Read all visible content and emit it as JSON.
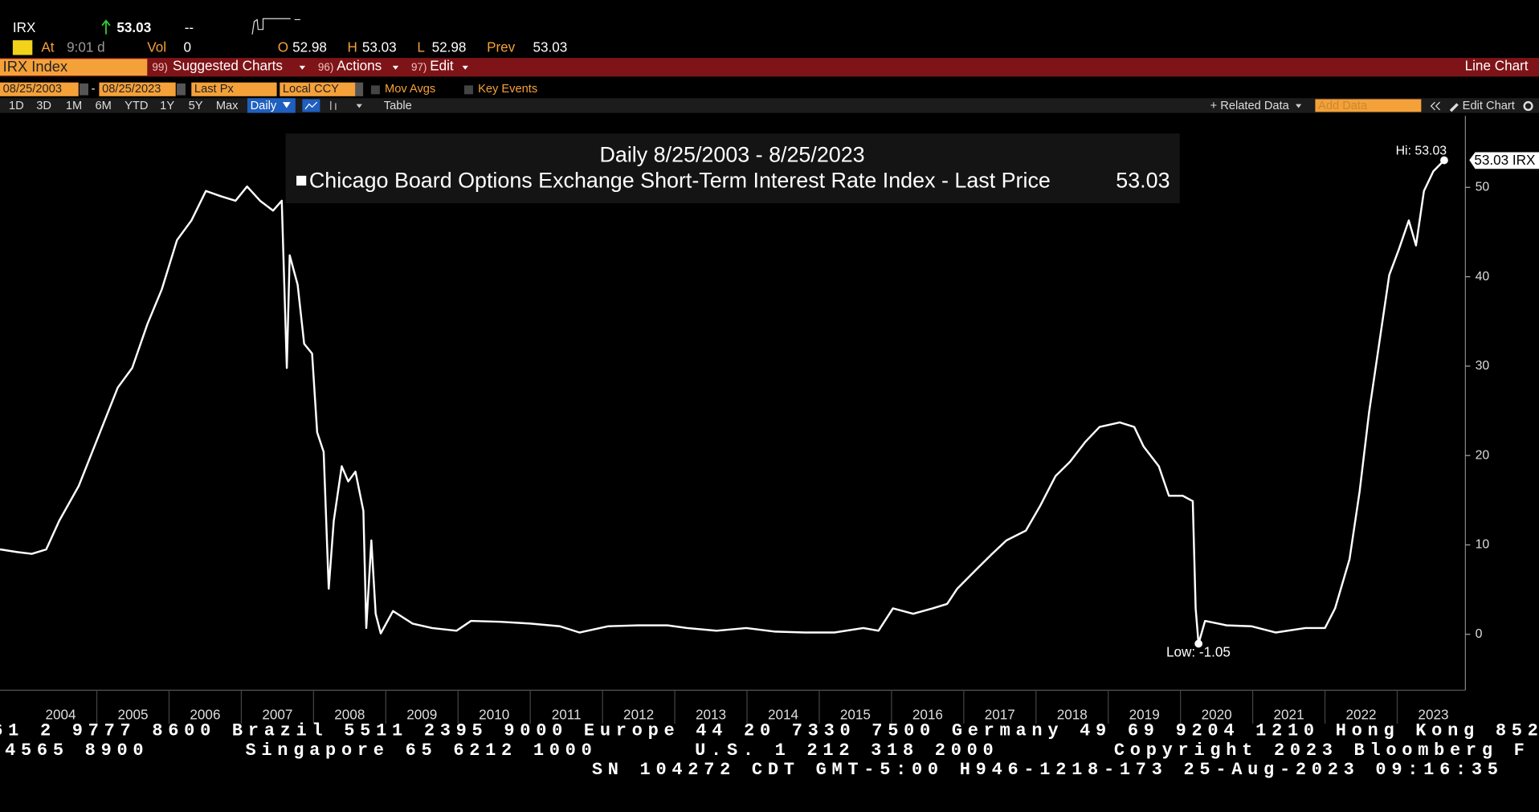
{
  "header": {
    "ticker": "IRX",
    "last": "53.03",
    "change": "--",
    "at_label": "At",
    "time": "9:01 d",
    "vol_label": "Vol",
    "vol": "0",
    "open_label": "O",
    "open": "52.98",
    "high_label": "H",
    "high": "53.03",
    "low_label": "L",
    "low": "52.98",
    "prev_label": "Prev",
    "prev": "53.03"
  },
  "menu": {
    "security": "IRX Index",
    "items": [
      {
        "num": "99)",
        "label": "Suggested Charts"
      },
      {
        "num": "96)",
        "label": "Actions"
      },
      {
        "num": "97)",
        "label": "Edit"
      }
    ],
    "view": "Line Chart"
  },
  "controls": {
    "start": "08/25/2003",
    "end": "08/25/2023",
    "field": "Last Px",
    "currency": "Local CCY",
    "mov_avgs": "Mov Avgs",
    "key_events": "Key Events"
  },
  "toolbar": {
    "periods": [
      "1D",
      "3D",
      "1M",
      "6M",
      "YTD",
      "1Y",
      "5Y",
      "Max"
    ],
    "frequency": "Daily",
    "table": "Table",
    "related": "+ Related Data",
    "add_data": "Add Data",
    "edit_chart": "Edit Chart"
  },
  "chart_data": {
    "type": "line",
    "title": "Daily 8/25/2003 - 8/25/2023",
    "x": [
      2003.66,
      2003.9,
      2004.1,
      2004.3,
      2004.48,
      2004.75,
      2005.02,
      2005.29,
      2005.49,
      2005.7,
      2005.9,
      2006.11,
      2006.31,
      2006.51,
      2006.72,
      2006.92,
      2007.08,
      2007.26,
      2007.44,
      2007.56,
      2007.63,
      2007.67,
      2007.78,
      2007.87,
      2007.98,
      2008.05,
      2008.14,
      2008.21,
      2008.28,
      2008.39,
      2008.48,
      2008.58,
      2008.69,
      2008.73,
      2008.8,
      2008.86,
      2008.93,
      2009.1,
      2009.37,
      2009.64,
      2009.98,
      2010.18,
      2010.59,
      2011.0,
      2011.41,
      2011.68,
      2012.08,
      2012.49,
      2012.9,
      2013.17,
      2013.58,
      2013.99,
      2014.39,
      2014.8,
      2015.21,
      2015.61,
      2015.82,
      2016.02,
      2016.3,
      2016.57,
      2016.77,
      2016.91,
      2017.18,
      2017.38,
      2017.59,
      2017.86,
      2018.06,
      2018.27,
      2018.47,
      2018.68,
      2018.88,
      2019.16,
      2019.36,
      2019.49,
      2019.7,
      2019.84,
      2020.03,
      2020.17,
      2020.21,
      2020.25,
      2020.34,
      2020.64,
      2020.98,
      2021.32,
      2021.73,
      2022.0,
      2022.14,
      2022.34,
      2022.48,
      2022.61,
      2022.75,
      2022.89,
      2023.02,
      2023.16,
      2023.26,
      2023.37,
      2023.5,
      2023.65
    ],
    "series": [
      {
        "name": "Chicago Board Options Exchange Short-Term Interest Rate Index - Last Price",
        "color": "#ffffff",
        "values": [
          9.5,
          9.2,
          9.0,
          9.5,
          12.7,
          16.6,
          22.1,
          27.6,
          29.8,
          34.7,
          38.6,
          44.1,
          46.3,
          49.6,
          49.0,
          48.5,
          50.1,
          48.5,
          47.4,
          48.5,
          29.8,
          42.4,
          39.1,
          32.5,
          31.4,
          22.6,
          20.4,
          5.1,
          12.7,
          18.8,
          17.1,
          18.2,
          13.8,
          0.7,
          10.5,
          2.3,
          0.1,
          2.6,
          1.2,
          0.7,
          0.4,
          1.5,
          1.4,
          1.2,
          0.9,
          0.2,
          0.9,
          1.0,
          1.0,
          0.7,
          0.4,
          0.7,
          0.3,
          0.2,
          0.2,
          0.7,
          0.4,
          2.9,
          2.3,
          2.9,
          3.4,
          5.1,
          7.3,
          8.9,
          10.5,
          11.6,
          14.4,
          17.7,
          19.3,
          21.5,
          23.2,
          23.7,
          23.2,
          21.0,
          18.8,
          15.5,
          15.5,
          14.9,
          2.9,
          -1.05,
          1.5,
          1.0,
          0.9,
          0.2,
          0.7,
          0.7,
          2.9,
          8.4,
          16.0,
          24.8,
          32.5,
          40.2,
          43.0,
          46.3,
          43.5,
          49.6,
          51.8,
          53.03
        ]
      }
    ],
    "last_price": 53.03,
    "last_label": "53.03 IRX",
    "hi_label": "Hi: 53.03",
    "low_label": "Low: -1.05",
    "xlim": [
      2003.66,
      2023.93
    ],
    "ylim": [
      -6.26,
      58.0
    ],
    "xticks": [
      {
        "value": 2004.5,
        "label": "2004"
      },
      {
        "value": 2005.5,
        "label": "2005"
      },
      {
        "value": 2006.5,
        "label": "2006"
      },
      {
        "value": 2007.5,
        "label": "2007"
      },
      {
        "value": 2008.5,
        "label": "2008"
      },
      {
        "value": 2009.5,
        "label": "2009"
      },
      {
        "value": 2010.5,
        "label": "2010"
      },
      {
        "value": 2011.5,
        "label": "2011"
      },
      {
        "value": 2012.5,
        "label": "2012"
      },
      {
        "value": 2013.5,
        "label": "2013"
      },
      {
        "value": 2014.5,
        "label": "2014"
      },
      {
        "value": 2015.5,
        "label": "2015"
      },
      {
        "value": 2016.5,
        "label": "2016"
      },
      {
        "value": 2017.5,
        "label": "2017"
      },
      {
        "value": 2018.5,
        "label": "2018"
      },
      {
        "value": 2019.5,
        "label": "2019"
      },
      {
        "value": 2020.5,
        "label": "2020"
      },
      {
        "value": 2021.5,
        "label": "2021"
      },
      {
        "value": 2022.5,
        "label": "2022"
      },
      {
        "value": 2023.5,
        "label": "2023"
      }
    ],
    "yticks": [
      0,
      10,
      20,
      30,
      40,
      50
    ]
  },
  "footer": {
    "lines": [
      [
        "61 2 9777 8600 Brazil 5511 2395 9000 Europe 44 20 7330 7500 Germany 49 69 9204 1210 Hong Kong 852"
      ],
      [
        "4565 8900",
        "Singapore 65 6212 1000",
        "U.S. 1 212 318 2000",
        "Copyright 2023 Bloomberg F"
      ],
      [
        "SN 104272 CDT  GMT-5:00 H946-1218-173 25-Aug-2023 09:16:35"
      ]
    ]
  }
}
